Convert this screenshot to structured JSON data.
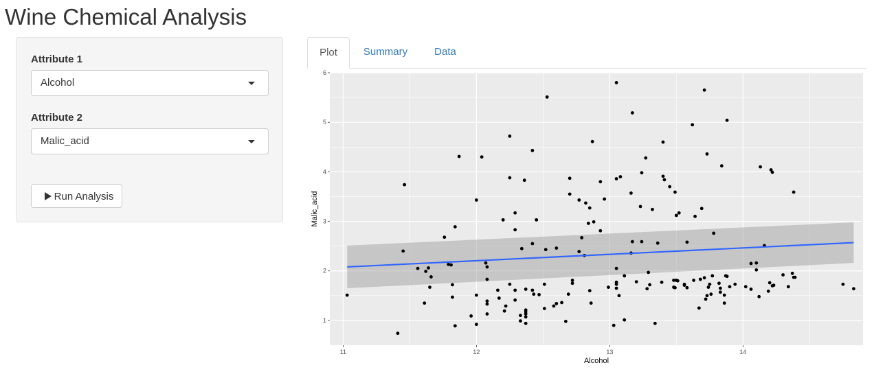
{
  "app": {
    "title": "Wine Chemical Analysis"
  },
  "sidebar": {
    "attr1_label": "Attribute 1",
    "attr1_value": "Alcohol",
    "attr2_label": "Attribute 2",
    "attr2_value": "Malic_acid",
    "run_button_label": "Run Analysis",
    "run_button_icon": "play-icon"
  },
  "tabs": [
    {
      "label": "Plot",
      "active": true
    },
    {
      "label": "Summary",
      "active": false
    },
    {
      "label": "Data",
      "active": false
    }
  ],
  "chart_data": {
    "type": "scatter",
    "title": "",
    "xlabel": "Alcohol",
    "ylabel": "Malic_acid",
    "xlim": [
      10.9,
      14.9
    ],
    "ylim": [
      0.5,
      6.0
    ],
    "xticks": [
      11,
      12,
      13,
      14,
      15
    ],
    "yticks": [
      1,
      2,
      3,
      4,
      5,
      6
    ],
    "grid": true,
    "background": "#ebebeb",
    "point_color": "#000000",
    "trend": {
      "method": "linear",
      "x": [
        11.03,
        14.83
      ],
      "y": [
        2.08,
        2.57
      ],
      "ci_lower": [
        1.65,
        2.16
      ],
      "ci_upper": [
        2.51,
        2.98
      ],
      "color": "#3366ff",
      "band_color": "#999999"
    },
    "points": [
      [
        11.03,
        1.51
      ],
      [
        11.41,
        0.74
      ],
      [
        11.45,
        2.4
      ],
      [
        11.46,
        3.74
      ],
      [
        11.56,
        2.05
      ],
      [
        11.61,
        1.35
      ],
      [
        11.62,
        1.99
      ],
      [
        11.64,
        2.06
      ],
      [
        11.65,
        1.67
      ],
      [
        11.66,
        1.88
      ],
      [
        11.76,
        2.68
      ],
      [
        11.79,
        2.13
      ],
      [
        11.81,
        2.12
      ],
      [
        11.82,
        1.72
      ],
      [
        11.82,
        1.47
      ],
      [
        11.84,
        2.89
      ],
      [
        11.84,
        0.89
      ],
      [
        11.87,
        4.31
      ],
      [
        11.96,
        1.09
      ],
      [
        12.0,
        0.92
      ],
      [
        12.0,
        3.43
      ],
      [
        12.0,
        1.51
      ],
      [
        12.04,
        4.3
      ],
      [
        12.07,
        2.16
      ],
      [
        12.08,
        2.08
      ],
      [
        12.08,
        1.83
      ],
      [
        12.08,
        1.39
      ],
      [
        12.08,
        1.33
      ],
      [
        12.08,
        1.13
      ],
      [
        12.16,
        1.61
      ],
      [
        12.17,
        1.45
      ],
      [
        12.2,
        3.03
      ],
      [
        12.21,
        1.19
      ],
      [
        12.22,
        1.29
      ],
      [
        12.25,
        3.88
      ],
      [
        12.25,
        1.73
      ],
      [
        12.25,
        4.72
      ],
      [
        12.29,
        2.83
      ],
      [
        12.29,
        1.61
      ],
      [
        12.29,
        3.17
      ],
      [
        12.29,
        1.41
      ],
      [
        12.33,
        0.99
      ],
      [
        12.33,
        1.1
      ],
      [
        12.34,
        2.45
      ],
      [
        12.36,
        3.83
      ],
      [
        12.37,
        1.63
      ],
      [
        12.37,
        1.21
      ],
      [
        12.37,
        1.17
      ],
      [
        12.37,
        1.07
      ],
      [
        12.37,
        1.13
      ],
      [
        12.37,
        0.94
      ],
      [
        12.42,
        4.43
      ],
      [
        12.42,
        2.55
      ],
      [
        12.42,
        1.61
      ],
      [
        12.43,
        1.53
      ],
      [
        12.45,
        3.03
      ],
      [
        12.47,
        1.52
      ],
      [
        12.51,
        1.73
      ],
      [
        12.51,
        1.24
      ],
      [
        12.52,
        2.43
      ],
      [
        12.53,
        5.51
      ],
      [
        12.58,
        1.29
      ],
      [
        12.6,
        1.34
      ],
      [
        12.6,
        2.46
      ],
      [
        12.64,
        1.36
      ],
      [
        12.67,
        0.98
      ],
      [
        12.69,
        1.53
      ],
      [
        12.7,
        3.87
      ],
      [
        12.7,
        3.55
      ],
      [
        12.72,
        1.75
      ],
      [
        12.72,
        1.81
      ],
      [
        12.77,
        3.43
      ],
      [
        12.77,
        2.39
      ],
      [
        12.79,
        2.67
      ],
      [
        12.81,
        2.31
      ],
      [
        12.82,
        3.37
      ],
      [
        12.84,
        2.96
      ],
      [
        12.85,
        1.6
      ],
      [
        12.85,
        3.27
      ],
      [
        12.86,
        1.35
      ],
      [
        12.87,
        4.61
      ],
      [
        12.88,
        2.99
      ],
      [
        12.93,
        3.8
      ],
      [
        12.93,
        2.81
      ],
      [
        12.96,
        3.45
      ],
      [
        12.99,
        1.67
      ],
      [
        13.03,
        0.9
      ],
      [
        13.05,
        1.65
      ],
      [
        13.05,
        1.73
      ],
      [
        13.05,
        2.05
      ],
      [
        13.05,
        3.86
      ],
      [
        13.05,
        1.77
      ],
      [
        13.05,
        5.8
      ],
      [
        13.07,
        1.5
      ],
      [
        13.08,
        3.9
      ],
      [
        13.11,
        1.01
      ],
      [
        13.11,
        1.9
      ],
      [
        13.16,
        3.57
      ],
      [
        13.16,
        2.36
      ],
      [
        13.17,
        2.59
      ],
      [
        13.17,
        5.19
      ],
      [
        13.2,
        1.78
      ],
      [
        13.23,
        3.3
      ],
      [
        13.24,
        2.59
      ],
      [
        13.24,
        3.98
      ],
      [
        13.27,
        4.28
      ],
      [
        13.28,
        1.64
      ],
      [
        13.29,
        1.97
      ],
      [
        13.3,
        1.72
      ],
      [
        13.32,
        3.24
      ],
      [
        13.34,
        0.94
      ],
      [
        13.36,
        2.56
      ],
      [
        13.39,
        1.77
      ],
      [
        13.4,
        3.91
      ],
      [
        13.4,
        4.6
      ],
      [
        13.41,
        3.84
      ],
      [
        13.45,
        3.7
      ],
      [
        13.48,
        1.81
      ],
      [
        13.48,
        1.67
      ],
      [
        13.49,
        1.66
      ],
      [
        13.49,
        3.59
      ],
      [
        13.5,
        1.81
      ],
      [
        13.5,
        3.12
      ],
      [
        13.51,
        1.8
      ],
      [
        13.52,
        3.17
      ],
      [
        13.56,
        1.73
      ],
      [
        13.56,
        1.71
      ],
      [
        13.58,
        1.66
      ],
      [
        13.58,
        2.58
      ],
      [
        13.62,
        4.95
      ],
      [
        13.63,
        1.81
      ],
      [
        13.64,
        3.1
      ],
      [
        13.67,
        1.25
      ],
      [
        13.68,
        1.83
      ],
      [
        13.69,
        3.26
      ],
      [
        13.71,
        1.86
      ],
      [
        13.71,
        5.65
      ],
      [
        13.72,
        1.43
      ],
      [
        13.73,
        1.5
      ],
      [
        13.73,
        4.36
      ],
      [
        13.74,
        1.67
      ],
      [
        13.75,
        1.73
      ],
      [
        13.76,
        1.53
      ],
      [
        13.77,
        1.9
      ],
      [
        13.78,
        2.76
      ],
      [
        13.82,
        1.75
      ],
      [
        13.83,
        1.57
      ],
      [
        13.83,
        1.65
      ],
      [
        13.84,
        4.12
      ],
      [
        13.86,
        1.35
      ],
      [
        13.86,
        1.51
      ],
      [
        13.87,
        1.9
      ],
      [
        13.88,
        1.89
      ],
      [
        13.88,
        5.04
      ],
      [
        13.9,
        1.68
      ],
      [
        13.94,
        1.73
      ],
      [
        14.02,
        1.68
      ],
      [
        14.06,
        1.63
      ],
      [
        14.06,
        2.15
      ],
      [
        14.1,
        2.16
      ],
      [
        14.1,
        2.02
      ],
      [
        14.12,
        1.48
      ],
      [
        14.13,
        4.1
      ],
      [
        14.16,
        2.51
      ],
      [
        14.19,
        1.59
      ],
      [
        14.2,
        1.76
      ],
      [
        14.21,
        4.04
      ],
      [
        14.22,
        3.99
      ],
      [
        14.22,
        1.7
      ],
      [
        14.23,
        1.71
      ],
      [
        14.3,
        1.92
      ],
      [
        14.34,
        1.68
      ],
      [
        14.37,
        1.95
      ],
      [
        14.38,
        1.87
      ],
      [
        14.38,
        3.59
      ],
      [
        14.39,
        1.87
      ],
      [
        14.75,
        1.73
      ],
      [
        14.83,
        1.64
      ]
    ]
  }
}
